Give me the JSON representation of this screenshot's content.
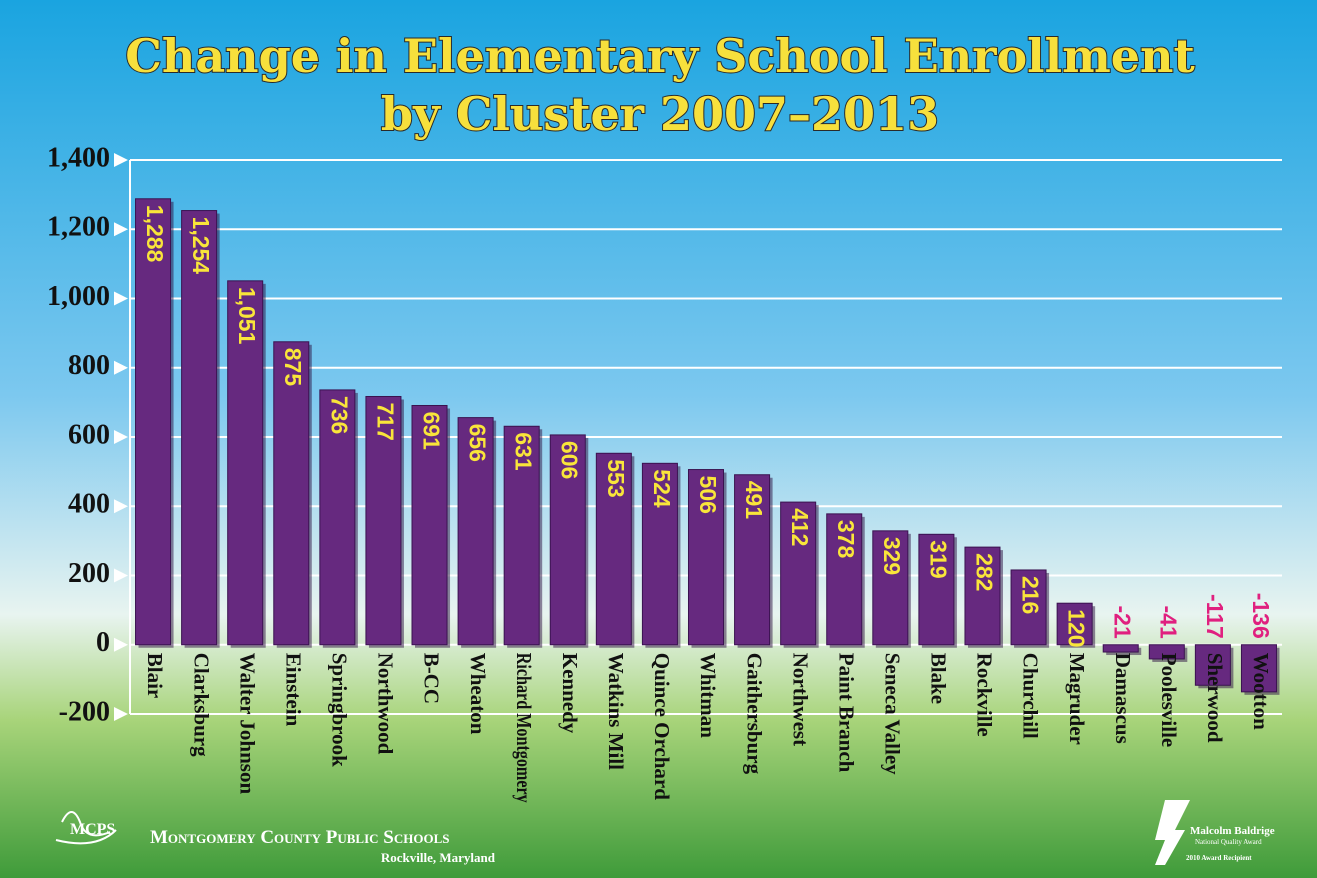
{
  "chart_data": {
    "type": "bar",
    "title": "Change in Elementary School Enrollment",
    "subtitle": "by Cluster 2007–2013",
    "categories": [
      "Blair",
      "Clarksburg",
      "Walter Johnson",
      "Einstein",
      "Springbrook",
      "Northwood",
      "B-CC",
      "Wheaton",
      "Richard Montgomery",
      "Kennedy",
      "Watkins Mill",
      "Quince Orchard",
      "Whitman",
      "Gaithersburg",
      "Northwest",
      "Paint Branch",
      "Seneca Valley",
      "Blake",
      "Rockville",
      "Churchill",
      "Magruder",
      "Damascus",
      "Poolesville",
      "Sherwood",
      "Wootton"
    ],
    "values": [
      1288,
      1254,
      1051,
      875,
      736,
      717,
      691,
      656,
      631,
      606,
      553,
      524,
      506,
      491,
      412,
      378,
      329,
      319,
      282,
      216,
      120,
      -21,
      -41,
      -117,
      -136
    ],
    "value_labels": [
      "1,288",
      "1,254",
      "1,051",
      "875",
      "736",
      "717",
      "691",
      "656",
      "631",
      "606",
      "553",
      "524",
      "506",
      "491",
      "412",
      "378",
      "329",
      "319",
      "282",
      "216",
      "120",
      "-21",
      "-41",
      "-117",
      "-136"
    ],
    "color": "#66297f",
    "label_color": "#f9e53a",
    "negative_label_color": "#e0207f",
    "ylim": [
      -200,
      1400
    ],
    "yticks": [
      -200,
      0,
      200,
      400,
      600,
      800,
      {
        "value": 1000,
        "label": "1,000"
      },
      {
        "value": 1200,
        "label": "1,200"
      },
      {
        "value": 1400,
        "label": "1,400"
      }
    ],
    "grid": true
  },
  "footer": {
    "logo": "MCPS",
    "organization": "Montgomery County Public Schools",
    "location": "Rockville, Maryland",
    "award": "Malcolm Baldrige",
    "award_sub": "National Quality Award",
    "award_year": "2010 Award Recipient"
  }
}
